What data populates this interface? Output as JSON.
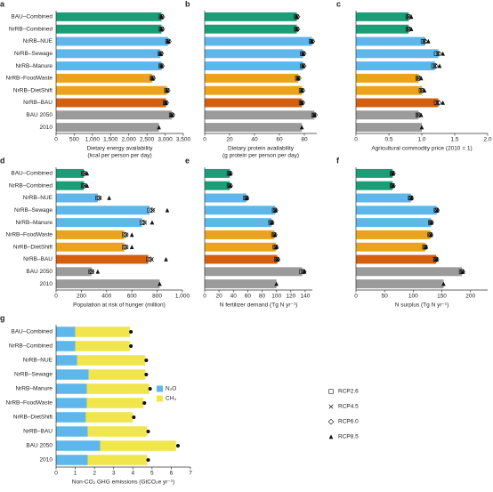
{
  "chart_data": [
    {
      "type": "bar",
      "panel": "a",
      "xlabel": [
        "Dietary energy availability",
        "(kcal per person per day)"
      ],
      "categories": [
        "BAU–Combined",
        "NrRB–Combined",
        "NrRB–NUE",
        "NrRB–Sewage",
        "NrRB–Manure",
        "NrRB–FoodWaste",
        "NrRB–DietShift",
        "NrRB–BAU",
        "BAU 2050",
        "2010"
      ],
      "colors": [
        "#1b9e77",
        "#1b9e77",
        "#5db7ea",
        "#5db7ea",
        "#5db7ea",
        "#eaa31b",
        "#eaa31b",
        "#d35f0f",
        "#9b9b9b",
        "#9b9b9b"
      ],
      "values": [
        2900,
        2900,
        3080,
        2870,
        2900,
        2650,
        3050,
        3020,
        3180,
        2830
      ],
      "markers": [
        [
          2890,
          2890,
          3070,
          2860,
          2880,
          2640,
          3040,
          3000,
          3170,
          null
        ],
        [
          2910,
          2910,
          3090,
          2880,
          2900,
          2660,
          3060,
          3020,
          3190,
          null
        ],
        [
          2920,
          2920,
          3100,
          2890,
          2910,
          2670,
          3070,
          3030,
          3200,
          null
        ],
        [
          2900,
          2900,
          3080,
          2870,
          2900,
          2650,
          3050,
          3020,
          3180,
          2830
        ]
      ],
      "xlim": [
        0,
        3500
      ],
      "xticks": [
        0,
        500,
        {
          "value": 1000,
          "label": "1,000"
        },
        {
          "value": 1500,
          "label": "1,500"
        },
        {
          "value": 2000,
          "label": "2,000"
        },
        {
          "value": 2500,
          "label": "2,500"
        },
        {
          "value": 3000,
          "label": "3,000"
        },
        {
          "value": 3500,
          "label": "3,500"
        }
      ]
    },
    {
      "type": "bar",
      "panel": "b",
      "xlabel": [
        "Dietary protein availability",
        "(g protein per person per day)"
      ],
      "colors": [
        "#1b9e77",
        "#1b9e77",
        "#5db7ea",
        "#5db7ea",
        "#5db7ea",
        "#eaa31b",
        "#eaa31b",
        "#d35f0f",
        "#9b9b9b",
        "#9b9b9b"
      ],
      "values": [
        74,
        74,
        86,
        79,
        79,
        75,
        78,
        78,
        88,
        78
      ],
      "markers": [
        [
          73.5,
          73.5,
          85.5,
          78.5,
          78.5,
          74.5,
          77.5,
          77.5,
          87.5,
          null
        ],
        [
          74,
          74,
          86,
          79,
          79,
          75,
          78,
          78,
          88,
          null
        ],
        [
          74.5,
          74.5,
          86.5,
          79.5,
          79.5,
          75.5,
          78.5,
          78.5,
          88.5,
          null
        ],
        [
          74,
          74,
          86,
          79,
          79,
          75,
          78,
          78,
          88,
          78
        ]
      ],
      "xlim": [
        0,
        90
      ],
      "xticks": [
        0,
        20,
        40,
        60,
        80
      ]
    },
    {
      "type": "bar",
      "panel": "c",
      "xlabel": [
        "Agricultural commodity price (2010 = 1)"
      ],
      "colors": [
        "#1b9e77",
        "#1b9e77",
        "#5db7ea",
        "#5db7ea",
        "#5db7ea",
        "#eaa31b",
        "#eaa31b",
        "#d35f0f",
        "#9b9b9b",
        "#9b9b9b"
      ],
      "values": [
        0.8,
        0.8,
        1.05,
        1.25,
        1.2,
        0.95,
        1.0,
        1.25,
        0.95,
        1.0
      ],
      "markers": [
        [
          0.79,
          0.79,
          1.02,
          1.22,
          1.18,
          0.94,
          0.99,
          1.22,
          0.94,
          null
        ],
        [
          0.8,
          0.8,
          1.04,
          1.25,
          1.2,
          0.95,
          1.0,
          1.24,
          0.95,
          null
        ],
        [
          0.81,
          0.81,
          1.05,
          1.26,
          1.21,
          0.96,
          1.01,
          1.26,
          0.96,
          null
        ],
        [
          0.84,
          0.84,
          1.1,
          1.32,
          1.27,
          0.99,
          1.04,
          1.32,
          0.99,
          1.0
        ]
      ],
      "xlim": [
        0,
        2
      ],
      "xticks": [
        0,
        0.5,
        {
          "value": 1,
          "label": "1.0"
        },
        1.5,
        {
          "value": 2,
          "label": "2.0"
        }
      ]
    },
    {
      "type": "bar",
      "panel": "d",
      "xlabel": [
        "Population at risk of hunger (million)"
      ],
      "categories": [
        "BAU–Combined",
        "NrRB–Combined",
        "NrRB–NUE",
        "NrRB–Sewage",
        "NrRB–Manure",
        "NrRB–FoodWaste",
        "NrRB–DietShift",
        "NrRB–BAU",
        "BAU 2050",
        "2010"
      ],
      "colors": [
        "#1b9e77",
        "#1b9e77",
        "#5db7ea",
        "#5db7ea",
        "#5db7ea",
        "#eaa31b",
        "#eaa31b",
        "#d35f0f",
        "#9b9b9b",
        "#9b9b9b"
      ],
      "values": [
        220,
        220,
        330,
        740,
        680,
        540,
        540,
        730,
        280,
        820
      ],
      "markers": [
        [
          215,
          215,
          330,
          740,
          680,
          540,
          540,
          730,
          275,
          null
        ],
        [
          225,
          225,
          345,
          765,
          700,
          555,
          555,
          755,
          285,
          null
        ],
        [
          222,
          222,
          340,
          760,
          695,
          552,
          552,
          748,
          282,
          null
        ],
        [
          245,
          245,
          420,
          880,
          760,
          600,
          600,
          870,
          330,
          820
        ]
      ],
      "xlim": [
        0,
        1000
      ],
      "xticks": [
        0,
        200,
        400,
        600,
        800,
        {
          "value": 1000,
          "label": "1,000"
        }
      ]
    },
    {
      "type": "bar",
      "panel": "e",
      "xlabel": [
        "N fertilizer demand (Tg N yr⁻¹)"
      ],
      "colors": [
        "#1b9e77",
        "#1b9e77",
        "#5db7ea",
        "#5db7ea",
        "#5db7ea",
        "#eaa31b",
        "#eaa31b",
        "#d35f0f",
        "#9b9b9b",
        "#9b9b9b"
      ],
      "values": [
        35,
        35,
        58,
        98,
        93,
        97,
        99,
        101,
        136,
        100
      ],
      "markers": [
        [
          34,
          34,
          57,
          97,
          92,
          96,
          98,
          100,
          135,
          null
        ],
        [
          35,
          35,
          58,
          98,
          93,
          97,
          99,
          101,
          137,
          null
        ],
        [
          35.5,
          35.5,
          58.5,
          98.5,
          93.5,
          97.5,
          99.5,
          101.5,
          138,
          null
        ],
        [
          36,
          36,
          59,
          99,
          94,
          98,
          100,
          102,
          139,
          100
        ]
      ],
      "xlim": [
        0,
        150
      ],
      "xticks": [
        0,
        20,
        40,
        60,
        80,
        100,
        120,
        140
      ]
    },
    {
      "type": "bar",
      "panel": "f",
      "xlabel": [
        "N surplus (Tg N yr⁻¹)"
      ],
      "colors": [
        "#1b9e77",
        "#1b9e77",
        "#5db7ea",
        "#5db7ea",
        "#5db7ea",
        "#eaa31b",
        "#eaa31b",
        "#d35f0f",
        "#9b9b9b",
        "#9b9b9b"
      ],
      "values": [
        64,
        64,
        96,
        141,
        131,
        130,
        121,
        140,
        185,
        153
      ],
      "markers": [
        [
          63,
          63,
          95,
          140,
          130,
          129,
          120,
          139,
          184,
          null
        ],
        [
          64,
          64,
          96,
          141,
          131,
          130,
          121,
          140,
          185,
          null
        ],
        [
          64.5,
          64.5,
          96.5,
          141.5,
          131.5,
          130.5,
          121.5,
          140.5,
          186,
          null
        ],
        [
          65,
          65,
          97,
          142,
          132,
          131,
          122,
          141,
          187,
          153
        ]
      ],
      "xlim": [
        0,
        230
      ],
      "xticks": [
        0,
        50,
        100,
        150,
        200
      ]
    },
    {
      "type": "stacked_bar",
      "panel": "g",
      "xlabel": [
        "Non-CO₂ GHG emissions (GtCO₂e yr⁻¹)"
      ],
      "categories": [
        "BAU–Combined",
        "NrRB–Combined",
        "NrRB–NUE",
        "NrRB–Sewage",
        "NrRB–Manure",
        "NrRB–FoodWaste",
        "NrRB–DietShift",
        "NrRB–BAU",
        "BAU 2050",
        "2010"
      ],
      "series": [
        {
          "name": "N₂O",
          "color": "#5db7ea",
          "values": [
            1.0,
            1.0,
            1.1,
            1.7,
            1.6,
            1.6,
            1.55,
            1.65,
            2.3,
            1.65
          ]
        },
        {
          "name": "CH₄",
          "color": "#f0e54a",
          "values": [
            2.85,
            2.85,
            3.55,
            2.95,
            3.25,
            2.95,
            2.45,
            3.1,
            3.95,
            3.1
          ]
        }
      ],
      "totals": [
        3.9,
        3.9,
        4.7,
        4.7,
        4.9,
        4.6,
        4.05,
        4.8,
        6.35,
        4.8
      ],
      "xlim": [
        0,
        7
      ],
      "xticks": [
        0,
        1,
        2,
        3,
        4,
        5,
        6,
        7
      ]
    }
  ],
  "marker_legend": [
    "RCP2.6",
    "RCP4.5",
    "RCP6.0",
    "RCP8.5"
  ]
}
